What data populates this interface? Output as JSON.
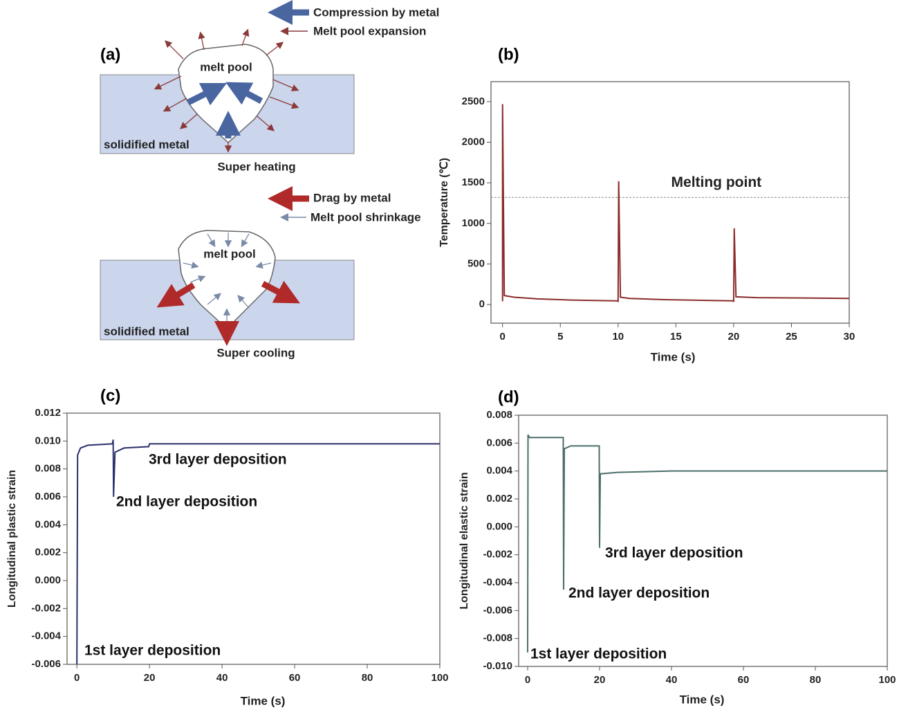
{
  "panel_a": {
    "label": "(a)",
    "top": {
      "legend": [
        "Compression by metal",
        "Melt pool expansion"
      ],
      "pool": "melt pool",
      "metal": "solidified metal",
      "caption": "Super heating"
    },
    "bottom": {
      "legend": [
        "Drag by metal",
        "Melt pool shrinkage"
      ],
      "pool": "melt pool",
      "metal": "solidified metal",
      "caption": "Super cooling"
    }
  },
  "chart_data": [
    {
      "type": "line",
      "panel_label": "(b)",
      "xlabel": "Time (s)",
      "ylabel": "Temperature (℃)",
      "color": "#8b2b2b",
      "x": [
        0,
        0,
        0.15,
        1,
        3,
        6,
        9.9,
        10,
        10.05,
        10.2,
        11,
        14,
        19.9,
        20,
        20.05,
        20.2,
        22,
        26,
        30
      ],
      "values": [
        40,
        2470,
        110,
        90,
        70,
        55,
        45,
        40,
        1520,
        90,
        75,
        60,
        45,
        40,
        940,
        95,
        85,
        80,
        75
      ],
      "xlim": [
        -1,
        30
      ],
      "xticks": [
        0,
        5,
        10,
        15,
        20,
        25,
        30
      ],
      "ylim": [
        -230,
        2747
      ],
      "yticks": [
        0,
        500,
        1000,
        1500,
        2000,
        2500
      ],
      "reference_line": {
        "value": 1320,
        "label": "Melting point"
      }
    },
    {
      "type": "line",
      "panel_label": "(c)",
      "xlabel": "Time (s)",
      "ylabel": "Longitudinal plastic strain",
      "color": "#2b2f6b",
      "x": [
        0,
        0.2,
        1,
        3,
        9.8,
        10,
        10.1,
        10.5,
        13,
        19.8,
        20,
        100
      ],
      "values": [
        -0.006,
        0.009,
        0.0095,
        0.0097,
        0.0098,
        0.0101,
        0.006,
        0.0092,
        0.0095,
        0.0096,
        0.0098,
        0.0098
      ],
      "xlim": [
        -2.7,
        100
      ],
      "xticks": [
        0,
        20,
        40,
        60,
        80,
        100
      ],
      "ylim": [
        -0.006,
        0.012
      ],
      "yticks": [
        -0.006,
        -0.004,
        -0.002,
        {
          "value": 0,
          "label": "0.000"
        },
        0.002,
        0.004,
        0.006,
        0.008,
        {
          "value": 0.01,
          "label": "0.010"
        },
        0.012
      ],
      "annotations": [
        "1st layer deposition",
        "2nd layer deposition",
        "3rd layer deposition"
      ]
    },
    {
      "type": "line",
      "panel_label": "(d)",
      "xlabel": "Time (s)",
      "ylabel": "Longitudinal elastic strain",
      "color": "#4a6e6a",
      "x": [
        0,
        0.1,
        0.5,
        9.9,
        10,
        10.2,
        12,
        19.9,
        20,
        20.2,
        25,
        40,
        100
      ],
      "values": [
        -0.009,
        0.0066,
        0.0064,
        0.0064,
        -0.0045,
        0.0056,
        0.0058,
        0.0058,
        -0.0015,
        0.0038,
        0.0039,
        0.004,
        0.004
      ],
      "xlim": [
        -2.5,
        100
      ],
      "xticks": [
        0,
        20,
        40,
        60,
        80,
        100
      ],
      "ylim": [
        -0.01,
        0.008
      ],
      "yticks": [
        {
          "value": -0.01,
          "label": "-0.010"
        },
        -0.008,
        -0.006,
        -0.004,
        -0.002,
        {
          "value": 0,
          "label": "0.000"
        },
        0.002,
        0.004,
        0.006,
        0.008
      ],
      "annotations": [
        "1st layer deposition",
        "2nd layer deposition",
        "3rd layer deposition"
      ]
    }
  ]
}
